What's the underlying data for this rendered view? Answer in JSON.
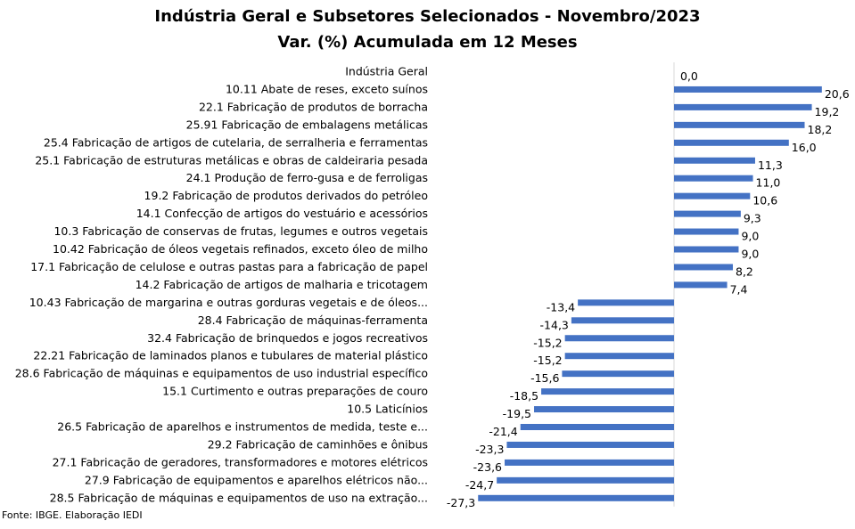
{
  "chart_data": {
    "type": "bar",
    "orientation": "horizontal",
    "title": "Indústria Geral e Subsetores Selecionados - Novembro/2023",
    "subtitle": "Var. (%) Acumulada em 12 Meses",
    "source": "Fonte: IBGE. Elaboração IEDI",
    "bar_color": "#4472C4",
    "grid": false,
    "legend": "none",
    "xlim": [
      -27.3,
      20.6
    ],
    "categories": [
      "Indústria Geral",
      "10.11 Abate de reses, exceto suínos",
      "22.1 Fabricação de produtos de borracha",
      "25.91 Fabricação de embalagens metálicas",
      "25.4 Fabricação de artigos de cutelaria, de serralheria e ferramentas",
      "25.1 Fabricação de estruturas metálicas e obras de caldeiraria pesada",
      "24.1 Produção de ferro-gusa e de ferroligas",
      "19.2 Fabricação de produtos derivados do petróleo",
      "14.1 Confecção de artigos do vestuário e acessórios",
      "10.3 Fabricação de conservas de frutas, legumes e outros vegetais",
      "10.42 Fabricação de óleos vegetais refinados, exceto óleo de milho",
      "17.1 Fabricação de celulose e outras pastas para a fabricação de papel",
      "14.2 Fabricação de artigos de malharia e tricotagem",
      "10.43 Fabricação de margarina e outras gorduras vegetais e de óleos...",
      "28.4 Fabricação de máquinas-ferramenta",
      "32.4 Fabricação de brinquedos e jogos recreativos",
      "22.21 Fabricação de laminados planos e tubulares de material plástico",
      "28.6 Fabricação de máquinas e equipamentos de uso industrial específico",
      "15.1 Curtimento e outras preparações de couro",
      "10.5 Laticínios",
      "26.5 Fabricação de aparelhos e instrumentos de medida, teste e...",
      "29.2 Fabricação de caminhões e ônibus",
      "27.1 Fabricação de geradores, transformadores e motores elétricos",
      "27.9 Fabricação de equipamentos e aparelhos elétricos não...",
      "28.5 Fabricação de máquinas e equipamentos de uso na extração..."
    ],
    "values": [
      0.0,
      20.6,
      19.2,
      18.2,
      16.0,
      11.3,
      11.0,
      10.6,
      9.3,
      9.0,
      9.0,
      8.2,
      7.4,
      -13.4,
      -14.3,
      -15.2,
      -15.2,
      -15.6,
      -18.5,
      -19.5,
      -21.4,
      -23.3,
      -23.6,
      -24.7,
      -27.3
    ],
    "value_labels": [
      "0,0",
      "20,6",
      "19,2",
      "18,2",
      "16,0",
      "11,3",
      "11,0",
      "10,6",
      "9,3",
      "9,0",
      "9,0",
      "8,2",
      "7,4",
      "-13,4",
      "-14,3",
      "-15,2",
      "-15,2",
      "-15,6",
      "-18,5",
      "-19,5",
      "-21,4",
      "-23,3",
      "-23,6",
      "-24,7",
      "-27,3"
    ]
  }
}
